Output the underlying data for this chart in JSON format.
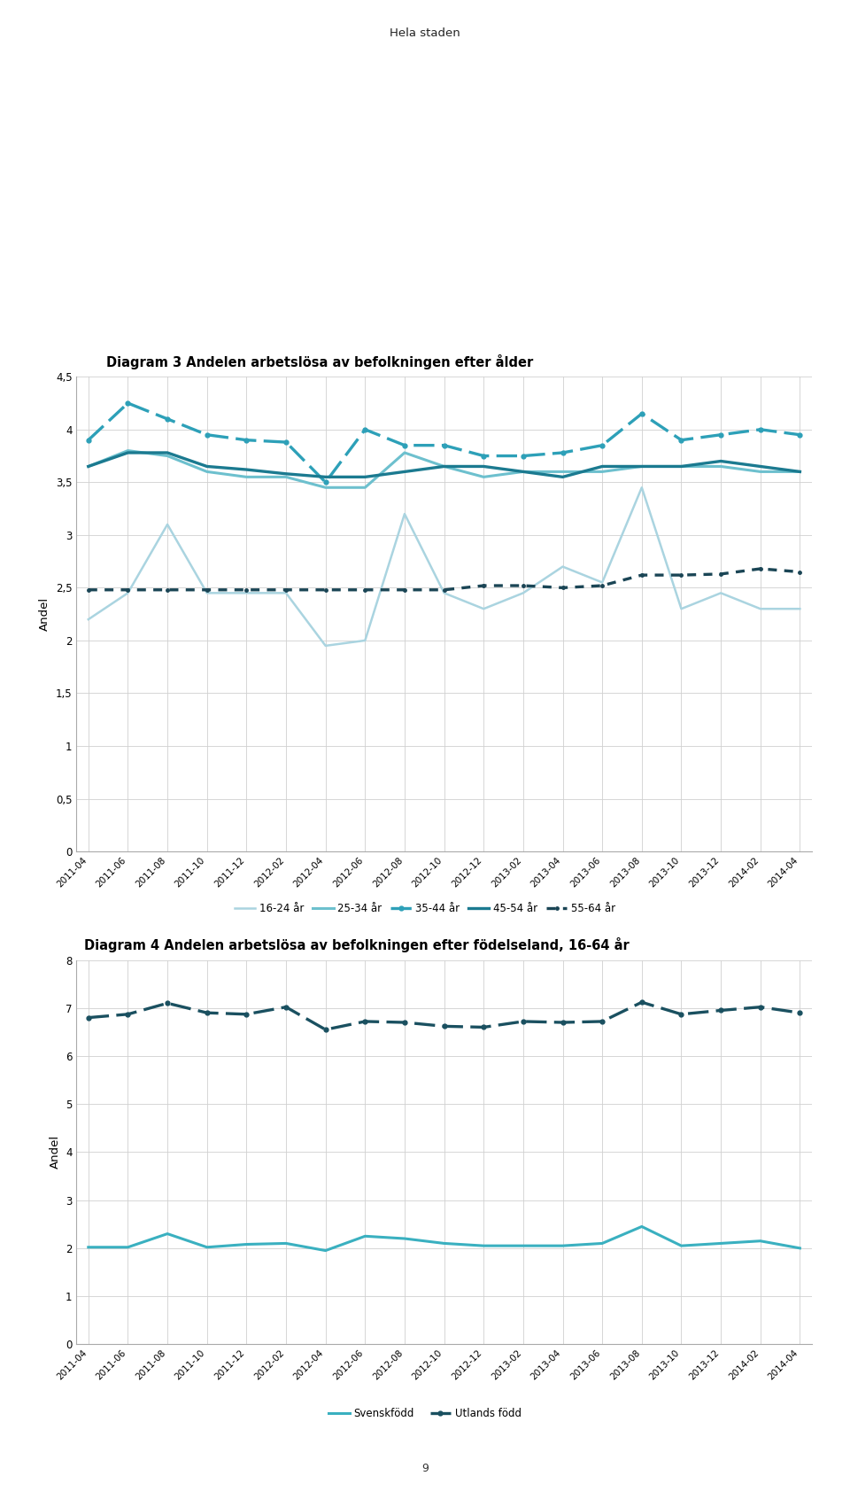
{
  "page_title": "Hela staden",
  "page_number": "9",
  "chart3_title": "Diagram 3 Andelen arbetslösa av befolkningen efter ålder",
  "chart3_ylabel": "Andel",
  "chart3_ylim": [
    0,
    4.5
  ],
  "chart3_yticks": [
    0,
    0.5,
    1.0,
    1.5,
    2.0,
    2.5,
    3.0,
    3.5,
    4.0,
    4.5
  ],
  "chart3_ytick_labels": [
    "0",
    "0,5",
    "1",
    "1,5",
    "2",
    "2,5",
    "3",
    "3,5",
    "4",
    "4,5"
  ],
  "chart4_title": "Diagram 4 Andelen arbetslösa av befolkningen efter födelseland, 16-64 år",
  "chart4_ylabel": "Andel",
  "chart4_ylim": [
    0,
    8
  ],
  "chart4_yticks": [
    0,
    1,
    2,
    3,
    4,
    5,
    6,
    7,
    8
  ],
  "chart4_ytick_labels": [
    "0",
    "1",
    "2",
    "3",
    "4",
    "5",
    "6",
    "7",
    "8"
  ],
  "x_labels": [
    "2011-04",
    "2011-06",
    "2011-08",
    "2011-10",
    "2011-12",
    "2012-02",
    "2012-04",
    "2012-06",
    "2012-08",
    "2012-10",
    "2012-12",
    "2013-02",
    "2013-04",
    "2013-06",
    "2013-08",
    "2013-10",
    "2013-12",
    "2014-02",
    "2014-04"
  ],
  "age_16_24": [
    2.2,
    2.45,
    3.1,
    2.45,
    2.45,
    2.45,
    1.95,
    2.0,
    3.2,
    2.45,
    2.3,
    2.45,
    2.7,
    2.55,
    3.45,
    2.3,
    2.45,
    2.3,
    2.3
  ],
  "age_25_34": [
    3.65,
    3.8,
    3.75,
    3.6,
    3.55,
    3.55,
    3.45,
    3.45,
    3.78,
    3.65,
    3.55,
    3.6,
    3.6,
    3.6,
    3.65,
    3.65,
    3.65,
    3.6,
    3.6
  ],
  "age_35_44": [
    3.9,
    4.25,
    4.1,
    3.95,
    3.9,
    3.88,
    3.5,
    4.0,
    3.85,
    3.85,
    3.75,
    3.75,
    3.78,
    3.85,
    4.15,
    3.9,
    3.95,
    4.0,
    3.95
  ],
  "age_45_54": [
    3.65,
    3.78,
    3.78,
    3.65,
    3.62,
    3.58,
    3.55,
    3.55,
    3.6,
    3.65,
    3.65,
    3.6,
    3.55,
    3.65,
    3.65,
    3.65,
    3.7,
    3.65,
    3.6
  ],
  "age_55_64": [
    2.48,
    2.48,
    2.48,
    2.48,
    2.48,
    2.48,
    2.48,
    2.48,
    2.48,
    2.48,
    2.52,
    2.52,
    2.5,
    2.52,
    2.62,
    2.62,
    2.63,
    2.68,
    2.65
  ],
  "svenskfodd": [
    2.02,
    2.02,
    2.3,
    2.02,
    2.08,
    2.1,
    1.95,
    2.25,
    2.2,
    2.1,
    2.05,
    2.05,
    2.05,
    2.1,
    2.45,
    2.05,
    2.1,
    2.15,
    2.0
  ],
  "utlandsfodd": [
    6.8,
    6.87,
    7.1,
    6.9,
    6.87,
    7.02,
    6.55,
    6.72,
    6.7,
    6.62,
    6.6,
    6.72,
    6.7,
    6.72,
    7.12,
    6.87,
    6.95,
    7.02,
    6.9
  ],
  "color_16_24": "#aad4e0",
  "color_25_34": "#6dc0ce",
  "color_35_44": "#2da0b8",
  "color_45_54": "#1b7a90",
  "color_55_64": "#1a4555",
  "color_svenskfodd": "#3ab0c0",
  "color_utlandsfodd": "#1a5060",
  "background_color": "#ffffff",
  "grid_color": "#d0d0d0"
}
